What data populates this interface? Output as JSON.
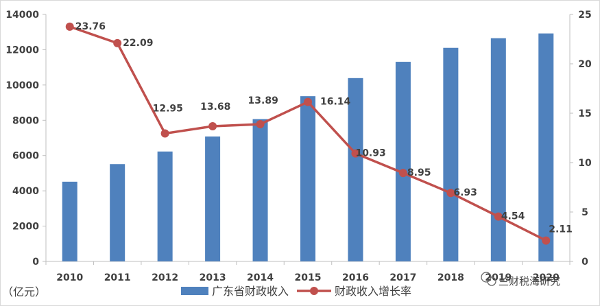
{
  "chart_data": {
    "type": "bar",
    "categories": [
      "2010",
      "2011",
      "2012",
      "2013",
      "2014",
      "2015",
      "2016",
      "2017",
      "2018",
      "2019",
      "2020"
    ],
    "series": [
      {
        "name": "广东省财政收入",
        "type": "bar",
        "axis": "left",
        "color": "#4f81bd",
        "values": [
          4517,
          5514,
          6229,
          7081,
          8065,
          9366,
          10390,
          11315,
          12105,
          12651,
          12922
        ]
      },
      {
        "name": "财政收入增长率",
        "type": "line",
        "axis": "right",
        "color": "#c0504d",
        "values": [
          23.76,
          22.09,
          12.95,
          13.68,
          13.89,
          16.14,
          10.93,
          8.95,
          6.93,
          4.54,
          2.11
        ],
        "labels": [
          "23.76",
          "22.09",
          "12.95",
          "13.68",
          "13.89",
          "16.14",
          "10.93",
          "8.95",
          "6.93",
          "4.54",
          "2.11"
        ]
      }
    ],
    "ylim": [
      0,
      14000
    ],
    "y2lim": [
      0,
      25
    ],
    "yticks": [
      "0",
      "2000",
      "4000",
      "6000",
      "8000",
      "10000",
      "12000",
      "14000"
    ],
    "y2ticks": [
      "0",
      "5",
      "10",
      "15",
      "20",
      "25"
    ],
    "unit_label": "（亿元）",
    "legend_position": "bottom",
    "grid": false
  },
  "watermark": {
    "text": "兰财税海研究",
    "icon": "wechat-icon"
  }
}
